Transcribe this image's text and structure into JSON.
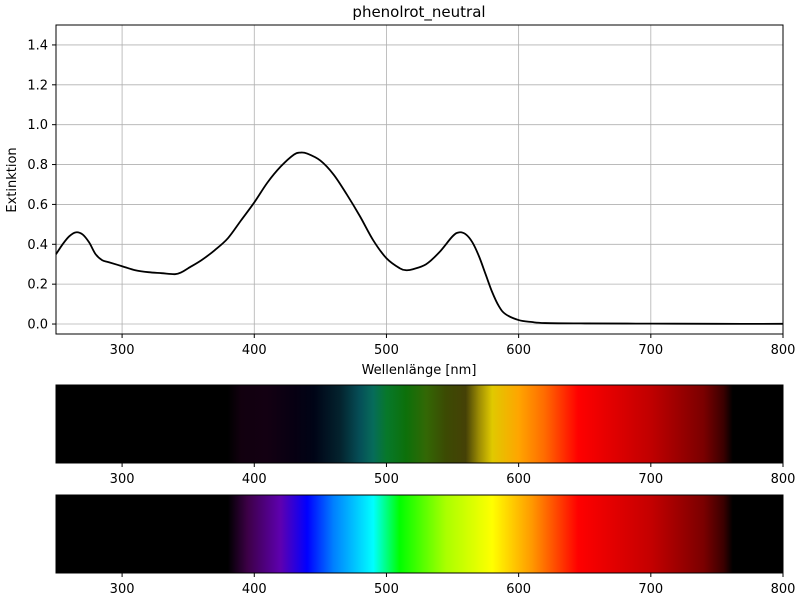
{
  "chart_data": [
    {
      "type": "line",
      "title": "phenolrot_neutral",
      "xlabel": "Wellenlänge [nm]",
      "ylabel": "Extinktion",
      "xlim": [
        250,
        800
      ],
      "ylim": [
        -0.05,
        1.5
      ],
      "grid": true,
      "x_ticks": [
        300,
        400,
        500,
        600,
        700,
        800
      ],
      "y_ticks": [
        0.0,
        0.2,
        0.4,
        0.6,
        0.8,
        1.0,
        1.2,
        1.4
      ],
      "line_color": "#000000",
      "series": [
        {
          "x": [
            250,
            255,
            260,
            265,
            270,
            275,
            280,
            285,
            290,
            300,
            310,
            320,
            330,
            340,
            345,
            350,
            360,
            370,
            380,
            390,
            400,
            410,
            420,
            430,
            435,
            440,
            450,
            460,
            470,
            480,
            490,
            500,
            510,
            515,
            520,
            530,
            540,
            550,
            555,
            560,
            565,
            570,
            575,
            580,
            585,
            590,
            600,
            610,
            620,
            650,
            700,
            750,
            800
          ],
          "y": [
            0.35,
            0.4,
            0.44,
            0.46,
            0.45,
            0.41,
            0.35,
            0.32,
            0.31,
            0.29,
            0.27,
            0.26,
            0.255,
            0.25,
            0.26,
            0.28,
            0.32,
            0.37,
            0.43,
            0.52,
            0.61,
            0.71,
            0.79,
            0.85,
            0.86,
            0.855,
            0.82,
            0.75,
            0.65,
            0.54,
            0.42,
            0.33,
            0.28,
            0.27,
            0.275,
            0.3,
            0.36,
            0.44,
            0.46,
            0.45,
            0.41,
            0.34,
            0.25,
            0.16,
            0.09,
            0.05,
            0.02,
            0.01,
            0.005,
            0.003,
            0.002,
            0.001,
            0.001
          ]
        }
      ]
    },
    {
      "type": "heatmap",
      "name": "absorption-spectrum-strip",
      "xlim": [
        250,
        800
      ],
      "x_ticks": [
        300,
        400,
        500,
        600,
        700,
        800
      ],
      "colors": [
        {
          "nm": 250,
          "color": "#000000"
        },
        {
          "nm": 380,
          "color": "#000000"
        },
        {
          "nm": 390,
          "color": "#12000f"
        },
        {
          "nm": 410,
          "color": "#130012"
        },
        {
          "nm": 430,
          "color": "#070012"
        },
        {
          "nm": 445,
          "color": "#000416"
        },
        {
          "nm": 465,
          "color": "#04232e"
        },
        {
          "nm": 480,
          "color": "#054f57"
        },
        {
          "nm": 490,
          "color": "#066c5a"
        },
        {
          "nm": 500,
          "color": "#07782b"
        },
        {
          "nm": 515,
          "color": "#0d700a"
        },
        {
          "nm": 530,
          "color": "#336805"
        },
        {
          "nm": 545,
          "color": "#3c4a03"
        },
        {
          "nm": 560,
          "color": "#454106"
        },
        {
          "nm": 570,
          "color": "#9c8c04"
        },
        {
          "nm": 580,
          "color": "#e0c900"
        },
        {
          "nm": 600,
          "color": "#ffa500"
        },
        {
          "nm": 620,
          "color": "#ff6a00"
        },
        {
          "nm": 645,
          "color": "#ff0000"
        },
        {
          "nm": 700,
          "color": "#c00000"
        },
        {
          "nm": 740,
          "color": "#7a0000"
        },
        {
          "nm": 755,
          "color": "#3a0000"
        },
        {
          "nm": 762,
          "color": "#000000"
        },
        {
          "nm": 800,
          "color": "#000000"
        }
      ]
    },
    {
      "type": "heatmap",
      "name": "visible-spectrum-strip",
      "xlim": [
        250,
        800
      ],
      "x_ticks": [
        300,
        400,
        500,
        600,
        700,
        800
      ],
      "colors": [
        {
          "nm": 250,
          "color": "#000000"
        },
        {
          "nm": 380,
          "color": "#000000"
        },
        {
          "nm": 395,
          "color": "#3d0047"
        },
        {
          "nm": 420,
          "color": "#5e00b0"
        },
        {
          "nm": 440,
          "color": "#0000ff"
        },
        {
          "nm": 460,
          "color": "#0080ff"
        },
        {
          "nm": 490,
          "color": "#00ffff"
        },
        {
          "nm": 510,
          "color": "#00ff00"
        },
        {
          "nm": 545,
          "color": "#aaff00"
        },
        {
          "nm": 580,
          "color": "#ffff00"
        },
        {
          "nm": 610,
          "color": "#ff9900"
        },
        {
          "nm": 645,
          "color": "#ff0000"
        },
        {
          "nm": 700,
          "color": "#c40000"
        },
        {
          "nm": 740,
          "color": "#7a0000"
        },
        {
          "nm": 755,
          "color": "#3a0000"
        },
        {
          "nm": 762,
          "color": "#000000"
        },
        {
          "nm": 800,
          "color": "#000000"
        }
      ]
    }
  ]
}
